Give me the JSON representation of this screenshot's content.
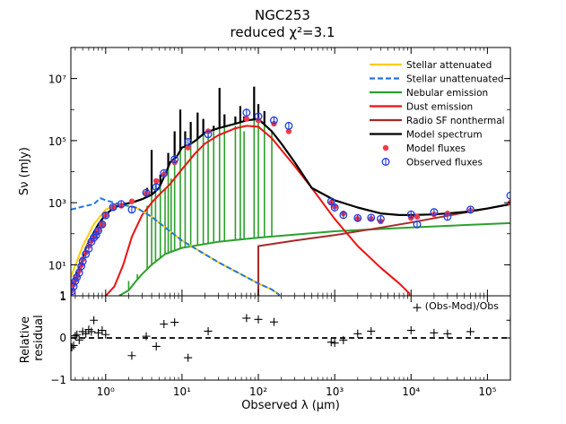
{
  "chart_data": {
    "type": "line",
    "title": "NGC253",
    "subtitle": "reduced χ²=3.1",
    "xlabel": "Observed λ (μm)",
    "x_scale": "log",
    "xlim": [
      0.35,
      200000
    ],
    "x_ticks": [
      1,
      10,
      100,
      1000,
      10000,
      100000
    ],
    "x_tick_labels": [
      "10⁰",
      "10¹",
      "10²",
      "10³",
      "10⁴",
      "10⁵"
    ],
    "main": {
      "ylabel": "Sν (mJy)",
      "y_scale": "log",
      "ylim": [
        1,
        100000000
      ],
      "y_ticks": [
        1,
        10,
        1000,
        100000,
        10000000
      ],
      "y_tick_labels": [
        "1",
        "10¹",
        "10³",
        "10⁵",
        "10⁷"
      ],
      "legend_position": "top-right",
      "series": [
        {
          "name": "Stellar attenuated",
          "color": "#ffcc00",
          "style": "solid",
          "x": [
            0.35,
            0.5,
            0.7,
            1.0,
            1.5,
            2.5,
            4,
            10,
            30,
            100,
            150,
            190
          ],
          "y": [
            4,
            40,
            200,
            600,
            900,
            700,
            350,
            60,
            12,
            2.5,
            1.6,
            1.05
          ]
        },
        {
          "name": "Stellar unattenuated",
          "color": "#1f77e4",
          "style": "dashed",
          "x": [
            0.35,
            0.5,
            0.7,
            0.85,
            1.0,
            1.5,
            2.5,
            4,
            10,
            30,
            100,
            150,
            190
          ],
          "y": [
            600,
            750,
            900,
            1400,
            1200,
            900,
            700,
            350,
            60,
            12,
            2.5,
            1.6,
            1.05
          ]
        },
        {
          "name": "Nebular emission",
          "color": "#2ca02c",
          "style": "solid",
          "x": [
            1.5,
            2.0,
            2.5,
            3,
            4,
            6,
            10,
            30,
            100,
            1000,
            10000,
            200000
          ],
          "y": [
            1,
            1.5,
            3,
            5,
            10,
            22,
            35,
            55,
            75,
            120,
            160,
            220
          ],
          "lines_x": [
            2.0,
            2.3,
            2.6,
            3.5,
            4.0,
            4.5,
            5.2,
            6.0,
            6.6,
            7.2,
            8.0,
            9.5,
            11,
            13,
            16,
            19,
            22,
            26,
            31,
            36,
            50,
            58,
            65,
            88,
            100,
            120,
            150
          ],
          "lines_y": [
            3,
            2.5,
            5,
            800,
            50000,
            4000,
            6000,
            3000,
            40000,
            6000,
            200000,
            1000000,
            200000,
            400000,
            800000,
            500000,
            150000,
            300000,
            5000000,
            700000,
            300000,
            1000000,
            200000,
            5000000,
            1000000,
            500000,
            200000
          ]
        },
        {
          "name": "Dust emission",
          "color": "#ee1111",
          "style": "solid",
          "x": [
            1.0,
            1.3,
            1.7,
            2.2,
            3,
            4,
            5,
            7,
            10,
            15,
            20,
            30,
            50,
            70,
            100,
            150,
            200,
            300,
            500,
            1000,
            2000,
            4000,
            7000,
            9500,
            9500
          ],
          "y": [
            1,
            2,
            10,
            80,
            400,
            1000,
            1800,
            4000,
            12000,
            40000,
            80000,
            150000,
            250000,
            300000,
            280000,
            120000,
            50000,
            15000,
            3000,
            300,
            40,
            8,
            2.5,
            1.2,
            1
          ]
        },
        {
          "name": "Radio SF nonthermal",
          "color": "#a52a2a",
          "style": "solid",
          "x": [
            100,
            100,
            300,
            1000,
            3000,
            10000,
            30000,
            100000,
            200000
          ],
          "y": [
            1,
            40,
            60,
            90,
            140,
            230,
            380,
            650,
            900
          ]
        },
        {
          "name": "Model spectrum",
          "color": "#000000",
          "style": "solid",
          "x": [
            0.35,
            0.4,
            0.45,
            0.5,
            0.55,
            0.65,
            0.8,
            1.0,
            1.3,
            1.7,
            2.2,
            3,
            4,
            5,
            6,
            7,
            8.5,
            10,
            12,
            15,
            20,
            30,
            50,
            70,
            100,
            150,
            200,
            300,
            500,
            1000,
            2000,
            4000,
            7000,
            10000,
            20000,
            50000,
            100000,
            200000
          ],
          "y": [
            2,
            4,
            8,
            15,
            35,
            80,
            200,
            420,
            700,
            900,
            1000,
            1300,
            1800,
            3000,
            8000,
            20000,
            30000,
            60000,
            70000,
            100000,
            180000,
            250000,
            350000,
            450000,
            500000,
            200000,
            80000,
            20000,
            3000,
            1200,
            700,
            450,
            400,
            400,
            420,
            500,
            650,
            900
          ],
          "lines_x": [
            3.5,
            4.0,
            5.2,
            6.6,
            8.0,
            9.5,
            11,
            13,
            16,
            19,
            26,
            31,
            36,
            50,
            58,
            65,
            88,
            100,
            120
          ],
          "lines_y": [
            3000,
            50000,
            8000,
            40000,
            200000,
            1000000,
            200000,
            400000,
            800000,
            500000,
            300000,
            5000000,
            700000,
            600000,
            1300000,
            600000,
            5500000,
            1500000,
            900000
          ]
        }
      ],
      "model_fluxes": {
        "name": "Model fluxes",
        "color": "#f03b4a",
        "x": [
          0.36,
          0.38,
          0.4,
          0.42,
          0.45,
          0.48,
          0.5,
          0.55,
          0.6,
          0.65,
          0.7,
          0.75,
          0.8,
          0.9,
          1.0,
          1.25,
          1.6,
          2.2,
          3.4,
          4.6,
          5.8,
          8.0,
          12,
          22,
          70,
          100,
          160,
          250,
          900,
          1000,
          1300,
          2000,
          3000,
          4000,
          10000,
          12000,
          20000,
          30000,
          60000,
          200000
        ],
        "y": [
          1.5,
          2.3,
          3.2,
          4.3,
          6.5,
          10,
          15,
          25,
          40,
          60,
          80,
          100,
          130,
          200,
          400,
          700,
          800,
          1100,
          2000,
          5000,
          8000,
          20000,
          60000,
          200000,
          500000,
          450000,
          350000,
          200000,
          1000,
          750,
          450,
          300,
          300,
          250,
          320,
          350,
          420,
          450,
          550,
          1000
        ]
      },
      "observed_fluxes": {
        "name": "Observed fluxes",
        "color": "#1f3fe0",
        "x": [
          0.36,
          0.38,
          0.4,
          0.42,
          0.45,
          0.48,
          0.5,
          0.55,
          0.6,
          0.65,
          0.7,
          0.75,
          0.8,
          0.9,
          1.0,
          1.25,
          1.6,
          2.2,
          3.4,
          4.6,
          5.8,
          8.0,
          12,
          22,
          70,
          100,
          160,
          250,
          900,
          1000,
          1300,
          2000,
          3000,
          4000,
          10000,
          12000,
          20000,
          30000,
          60000,
          200000
        ],
        "y": [
          1.4,
          2.0,
          3.0,
          4.0,
          5.5,
          9,
          13,
          22,
          33,
          55,
          75,
          90,
          125,
          200,
          390,
          720,
          900,
          600,
          2100,
          3200,
          9000,
          25000,
          90000,
          160000,
          800000,
          600000,
          450000,
          300000,
          1100,
          700,
          400,
          320,
          330,
          300,
          420,
          200,
          500,
          350,
          600,
          1700
        ]
      }
    },
    "residual": {
      "ylabel": "Relative residual",
      "annotation": "(Obs-Mod)/Obs",
      "ylim": [
        -1,
        1
      ],
      "y_ticks": [
        -1,
        0,
        1
      ],
      "y_tick_labels": [
        "−1",
        "0",
        "1"
      ],
      "reference_line": 0,
      "x": [
        0.36,
        0.38,
        0.4,
        0.42,
        0.45,
        0.5,
        0.55,
        0.6,
        0.65,
        0.7,
        0.8,
        0.9,
        1.0,
        2.2,
        3.4,
        4.6,
        5.8,
        8.0,
        12,
        22,
        70,
        100,
        160,
        900,
        1000,
        1300,
        2000,
        3000,
        10000,
        12000,
        20000,
        30000,
        60000,
        200000
      ],
      "y": [
        -0.22,
        -0.18,
        0.05,
        0.08,
        -0.05,
        0.15,
        0.1,
        0.2,
        0.15,
        0.42,
        0.12,
        0.18,
        0.08,
        -0.42,
        0.04,
        -0.2,
        0.33,
        0.37,
        -0.47,
        0.16,
        0.47,
        0.44,
        0.38,
        -0.1,
        -0.12,
        -0.05,
        0.1,
        0.16,
        0.18,
        0.72,
        0.12,
        0.1,
        0.15,
        0.42
      ]
    }
  }
}
